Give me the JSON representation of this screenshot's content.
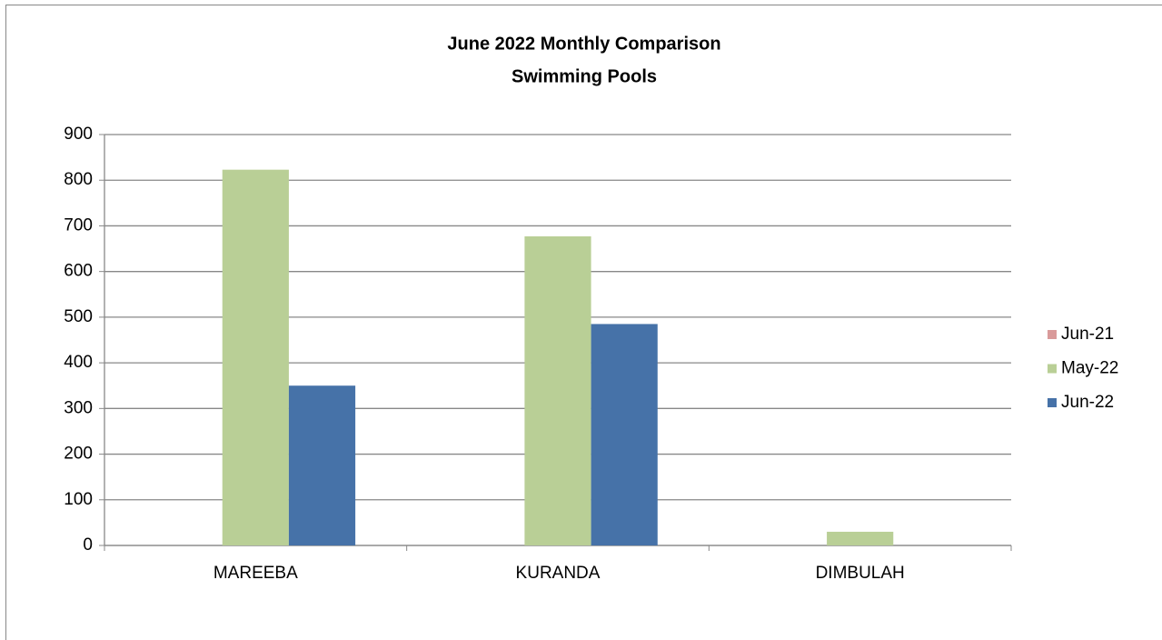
{
  "chart_data": {
    "type": "bar",
    "title": "June 2022   Monthly Comparison",
    "subtitle": "Swimming Pools",
    "categories": [
      "MAREEBA",
      "KURANDA",
      "DIMBULAH"
    ],
    "series": [
      {
        "name": "Jun-21",
        "color": "#d99a9a",
        "values": [
          0,
          0,
          0
        ]
      },
      {
        "name": "May-22",
        "color": "#b9cf96",
        "values": [
          823,
          677,
          30
        ]
      },
      {
        "name": "Jun-22",
        "color": "#4672a8",
        "values": [
          350,
          485,
          0
        ]
      }
    ],
    "ylim": [
      0,
      900
    ],
    "yticks": [
      0,
      100,
      200,
      300,
      400,
      500,
      600,
      700,
      800,
      900
    ],
    "grid": true,
    "legend": "right"
  }
}
